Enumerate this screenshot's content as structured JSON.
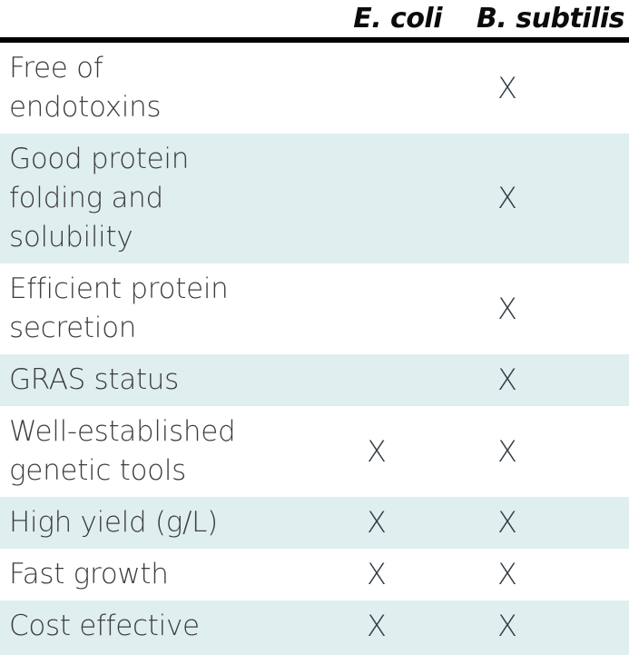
{
  "header": {
    "columns": [
      "E. coli",
      "B. subtilis"
    ]
  },
  "rows": [
    {
      "label": "Free of\nendotoxins",
      "marks": [
        "",
        "X"
      ]
    },
    {
      "label": "Good protein\nfolding and\nsolubility",
      "marks": [
        "",
        "X"
      ]
    },
    {
      "label": "Efficient protein\nsecretion",
      "marks": [
        "",
        "X"
      ]
    },
    {
      "label": "GRAS status",
      "marks": [
        "",
        "X"
      ]
    },
    {
      "label": "Well-established\ngenetic tools",
      "marks": [
        "X",
        "X"
      ]
    },
    {
      "label": "High yield (g/L)",
      "marks": [
        "X",
        "X"
      ]
    },
    {
      "label": "Fast growth",
      "marks": [
        "X",
        "X"
      ]
    },
    {
      "label": "Cost effective",
      "marks": [
        "X",
        "X"
      ]
    }
  ],
  "colors": {
    "stripe": "#dfeeee",
    "rule": "#000000",
    "header_text": "#0b0b0b",
    "label_text": "#3d3d3d",
    "mark_text": "#333e46"
  }
}
